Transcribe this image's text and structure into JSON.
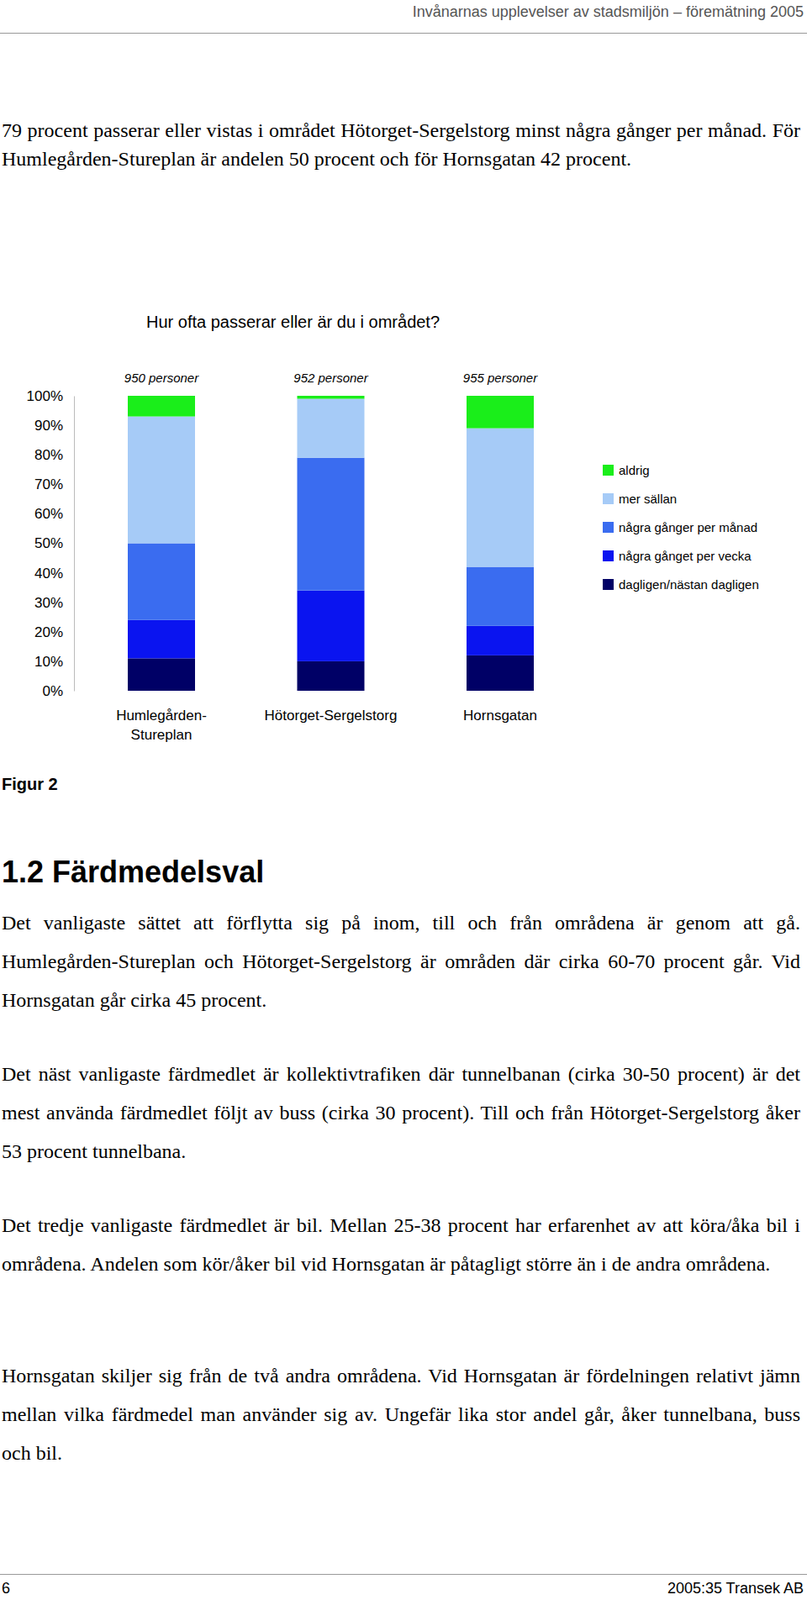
{
  "header": {
    "title": "Invånarnas upplevelser av stadsmiljön – föremätning 2005"
  },
  "intro": "79 procent passerar eller vistas i området Hötorget-Sergelstorg minst några gånger per månad. För Humlegården-Stureplan är andelen 50 procent och för Hornsgatan 42 procent.",
  "chart_data": {
    "type": "bar",
    "stacked": true,
    "title": "Hur ofta passerar eller är du i området?",
    "categories": [
      "Humlegården-Stureplan",
      "Hötorget-Sergelstorg",
      "Hornsgatan"
    ],
    "sample_sizes": [
      "950 personer",
      "952 personer",
      "955 personer"
    ],
    "series": [
      {
        "name": "dagligen/nästan dagligen",
        "color": "#000066",
        "values": [
          11,
          10,
          12
        ]
      },
      {
        "name": "några gånget per vecka",
        "color": "#0a14f0",
        "values": [
          13,
          24,
          10
        ]
      },
      {
        "name": "några gånger per månad",
        "color": "#3a6cf0",
        "values": [
          26,
          45,
          20
        ]
      },
      {
        "name": "mer sällan",
        "color": "#a6cbf7",
        "values": [
          43,
          20,
          47
        ]
      },
      {
        "name": "aldrig",
        "color": "#1aee1a",
        "values": [
          7,
          1,
          11
        ]
      }
    ],
    "ylim": [
      0,
      100
    ],
    "yticks": [
      {
        "value": 0,
        "label": "0%"
      },
      {
        "value": 10,
        "label": "10%"
      },
      {
        "value": 20,
        "label": "20%"
      },
      {
        "value": 30,
        "label": "30%"
      },
      {
        "value": 40,
        "label": "40%"
      },
      {
        "value": 50,
        "label": "50%"
      },
      {
        "value": 60,
        "label": "60%"
      },
      {
        "value": 70,
        "label": "70%"
      },
      {
        "value": 80,
        "label": "80%"
      },
      {
        "value": 90,
        "label": "90%"
      },
      {
        "value": 100,
        "label": "100%"
      }
    ],
    "grid": false,
    "legend": "right"
  },
  "figure_label": "Figur 2",
  "section": {
    "heading": "1.2 Färdmedelsval",
    "paragraphs": [
      "Det vanligaste sättet att förflytta sig på inom, till och från områdena är genom att gå. Humlegården-Stureplan och Hötorget-Sergelstorg är områden där cirka 60-70 procent går. Vid Hornsgatan går cirka 45 procent.",
      "Det näst vanligaste färdmedlet är kollektivtrafiken där tunnelbanan (cirka 30-50 procent) är det mest använda färdmedlet följt av buss (cirka 30 procent). Till och från Hötorget-Sergelstorg åker 53 procent tunnelbana.",
      "Det tredje vanligaste färdmedlet är bil. Mellan 25-38 procent har erfarenhet av att köra/åka bil i områdena. Andelen som kör/åker bil vid Hornsgatan är påtagligt större än i de andra områdena.",
      "Hornsgatan skiljer sig från de två andra områdena. Vid Hornsgatan är fördelningen relativt jämn mellan vilka färdmedel man använder sig av. Ungefär lika stor andel går, åker tunnelbana, buss och bil."
    ]
  },
  "footer": {
    "page": "6",
    "source": "2005:35 Transek AB"
  }
}
